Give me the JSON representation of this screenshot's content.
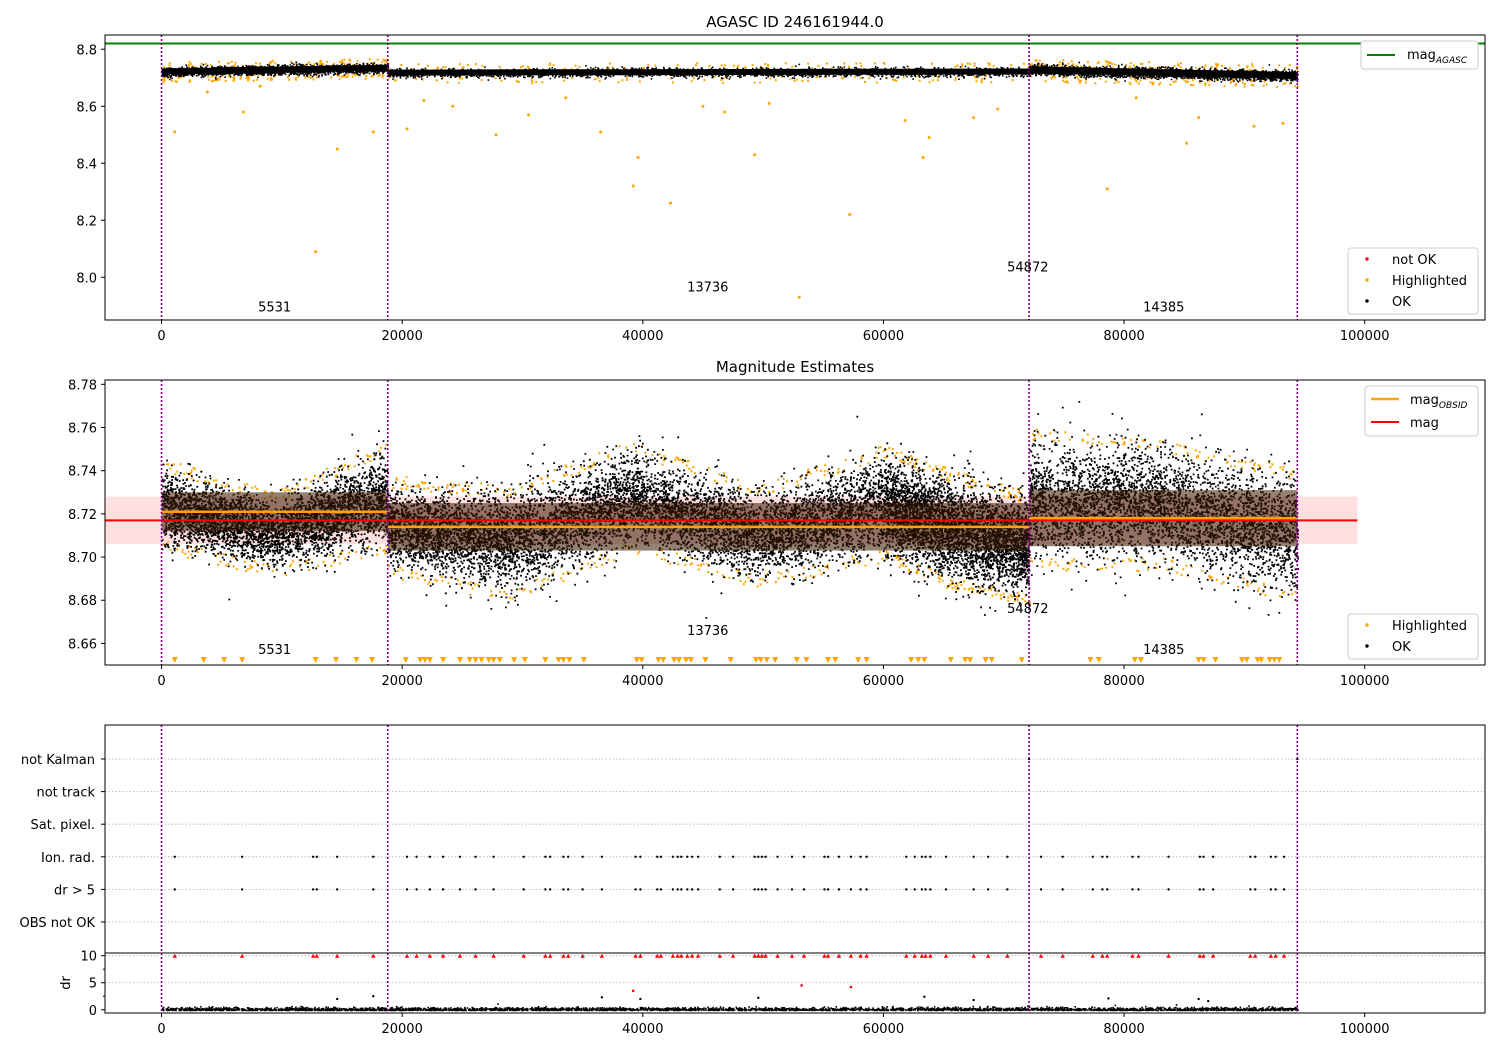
{
  "colors": {
    "agasc_line": "#008000",
    "obsid_line": "#ffa500",
    "mean_line": "#ff0000",
    "highlighted": "#ffa500",
    "ok": "#000000",
    "not_ok": "#ff0000",
    "band": "#ffcccc",
    "obs_boundary": "#800080",
    "grid": "#b0b0b0"
  },
  "chart_data": [
    {
      "type": "scatter",
      "title": "AGASC ID 246161944.0",
      "xlim": [
        -4700,
        110000
      ],
      "ylim": [
        7.85,
        8.85
      ],
      "xticks": [
        0,
        20000,
        40000,
        60000,
        80000,
        100000
      ],
      "xtick_labels": [
        "0",
        "20000",
        "40000",
        "60000",
        "80000",
        "100000"
      ],
      "yticks": [
        8.0,
        8.2,
        8.4,
        8.6,
        8.8
      ],
      "ytick_labels": [
        "8.0",
        "8.2",
        "8.4",
        "8.6",
        "8.8"
      ],
      "reference_line": {
        "name": "mag_AGASC",
        "value": 8.82
      },
      "observation_boundaries": [
        0,
        18800,
        72100,
        94400
      ],
      "segment_labels": [
        {
          "text": "5531",
          "x": 9400,
          "y": 7.88
        },
        {
          "text": "13736",
          "x": 45400,
          "y": 7.95
        },
        {
          "text": "54872",
          "x": 72000,
          "y": 8.02
        },
        {
          "text": "14385",
          "x": 83300,
          "y": 7.88
        }
      ],
      "legend_top": {
        "placement": "upper right",
        "entries": [
          "mag_AGASC"
        ]
      },
      "legend_bottom": {
        "placement": "lower right",
        "entries": [
          "not OK",
          "Highlighted",
          "OK"
        ]
      },
      "ok_band": [
        {
          "x": [
            0,
            18800
          ],
          "center_start": 8.722,
          "center_end": 8.735,
          "half_width": 0.014
        },
        {
          "x": [
            18800,
            72100
          ],
          "center_start": 8.718,
          "center_end": 8.722,
          "half_width": 0.014
        },
        {
          "x": [
            72100,
            94400
          ],
          "center_start": 8.728,
          "center_end": 8.708,
          "half_width": 0.016
        }
      ],
      "highlighted_outliers": [
        [
          1100,
          8.51
        ],
        [
          3800,
          8.65
        ],
        [
          6800,
          8.58
        ],
        [
          8200,
          8.67
        ],
        [
          12800,
          8.09
        ],
        [
          14600,
          8.45
        ],
        [
          17600,
          8.51
        ],
        [
          20400,
          8.52
        ],
        [
          21800,
          8.62
        ],
        [
          24200,
          8.6
        ],
        [
          27800,
          8.5
        ],
        [
          30500,
          8.57
        ],
        [
          33600,
          8.63
        ],
        [
          36500,
          8.51
        ],
        [
          39200,
          8.32
        ],
        [
          39600,
          8.42
        ],
        [
          42300,
          8.26
        ],
        [
          45000,
          8.6
        ],
        [
          46800,
          8.58
        ],
        [
          49300,
          8.43
        ],
        [
          50500,
          8.61
        ],
        [
          53000,
          7.93
        ],
        [
          57200,
          8.22
        ],
        [
          61800,
          8.55
        ],
        [
          63300,
          8.42
        ],
        [
          63800,
          8.49
        ],
        [
          67500,
          8.56
        ],
        [
          69500,
          8.59
        ],
        [
          78600,
          8.31
        ],
        [
          81000,
          8.63
        ],
        [
          85200,
          8.47
        ],
        [
          86200,
          8.56
        ],
        [
          90800,
          8.53
        ],
        [
          93200,
          8.54
        ]
      ]
    },
    {
      "type": "scatter",
      "title": "Magnitude Estimates",
      "xlim": [
        -4700,
        110000
      ],
      "ylim": [
        8.65,
        8.782
      ],
      "xticks": [
        0,
        20000,
        40000,
        60000,
        80000,
        100000
      ],
      "xtick_labels": [
        "0",
        "20000",
        "40000",
        "60000",
        "80000",
        "100000"
      ],
      "yticks": [
        8.66,
        8.68,
        8.7,
        8.72,
        8.74,
        8.76,
        8.78
      ],
      "ytick_labels": [
        "8.66",
        "8.68",
        "8.70",
        "8.72",
        "8.74",
        "8.76",
        "8.78"
      ],
      "mag_line": {
        "name": "mag",
        "value": 8.717,
        "band": [
          8.706,
          8.728
        ],
        "x": [
          -4700,
          99400
        ]
      },
      "obsid_segments": [
        {
          "x": [
            0,
            18800
          ],
          "mag": 8.721,
          "band": [
            8.712,
            8.73
          ]
        },
        {
          "x": [
            18800,
            72100
          ],
          "mag": 8.714,
          "band": [
            8.703,
            8.725
          ]
        },
        {
          "x": [
            72100,
            94400
          ],
          "mag": 8.718,
          "band": [
            8.705,
            8.731
          ]
        }
      ],
      "observation_boundaries": [
        0,
        18800,
        72100,
        94400
      ],
      "segment_labels": [
        {
          "text": "5531",
          "x": 9400,
          "y": 8.655
        },
        {
          "text": "13736",
          "x": 45400,
          "y": 8.664
        },
        {
          "text": "54872",
          "x": 72000,
          "y": 8.674
        },
        {
          "text": "14385",
          "x": 83300,
          "y": 8.655
        }
      ],
      "legend_top": {
        "placement": "upper right",
        "entries": [
          "mag_OBSID",
          "mag"
        ]
      },
      "legend_bottom": {
        "placement": "lower right",
        "entries": [
          "Highlighted",
          "OK"
        ]
      },
      "scatter_envelope": [
        {
          "x": [
            0,
            18800
          ],
          "low_start": 8.708,
          "low_mid": 8.697,
          "low_end": 8.708,
          "high_start": 8.74,
          "high_mid": 8.725,
          "high_end": 8.748
        },
        {
          "x": [
            18800,
            39000
          ],
          "low_start": 8.697,
          "low_mid": 8.685,
          "low_end": 8.708,
          "high_start": 8.732,
          "high_mid": 8.728,
          "high_end": 8.748
        },
        {
          "x": [
            39000,
            60000
          ],
          "low_start": 8.708,
          "low_mid": 8.692,
          "low_end": 8.704,
          "high_start": 8.748,
          "high_mid": 8.728,
          "high_end": 8.746
        },
        {
          "x": [
            60000,
            72100
          ],
          "low_start": 8.704,
          "low_mid": 8.69,
          "low_end": 8.684,
          "high_start": 8.746,
          "high_mid": 8.734,
          "high_end": 8.725
        },
        {
          "x": [
            72100,
            94400
          ],
          "low_start": 8.7,
          "low_mid": 8.7,
          "low_end": 8.684,
          "high_start": 8.754,
          "high_mid": 8.748,
          "high_end": 8.736
        }
      ],
      "highlighted_low_markers": [
        1100,
        3500,
        5200,
        6700,
        12800,
        14500,
        16200,
        17500,
        20300,
        21500,
        21900,
        22300,
        23400,
        24800,
        25600,
        26100,
        26600,
        27200,
        27600,
        28100,
        29300,
        30200,
        31900,
        33000,
        33400,
        33900,
        35100,
        39500,
        39900,
        41300,
        41700,
        42600,
        43000,
        43600,
        44000,
        45200,
        47300,
        49400,
        49800,
        50300,
        51000,
        52800,
        53600,
        55400,
        56000,
        57900,
        58600,
        62300,
        62900,
        63400,
        65600,
        66800,
        67200,
        68500,
        69000,
        71500,
        77200,
        77900,
        80900,
        81400,
        86200,
        86600,
        87600,
        89800,
        90200,
        91100,
        91400,
        92100,
        92500,
        92900
      ]
    },
    {
      "type": "scatter",
      "title": "",
      "xlim": [
        -4700,
        110000
      ],
      "xticks": [
        0,
        20000,
        40000,
        60000,
        80000,
        100000
      ],
      "xtick_labels": [
        "0",
        "20000",
        "40000",
        "60000",
        "80000",
        "100000"
      ],
      "flag_rows": [
        "not Kalman",
        "not track",
        "Sat. pixel.",
        "Ion. rad.",
        "dr > 5",
        "OBS not OK"
      ],
      "flag_points": {
        "Ion. rad.": [
          1100,
          6700,
          12600,
          12900,
          14600,
          17600,
          20400,
          21200,
          22300,
          23400,
          24800,
          26100,
          27600,
          30100,
          31900,
          32300,
          33400,
          33800,
          35000,
          36600,
          39400,
          39800,
          41200,
          41500,
          42500,
          42900,
          43200,
          43700,
          44100,
          44600,
          46400,
          47500,
          49300,
          49600,
          49900,
          50200,
          51200,
          52400,
          53400,
          55100,
          55400,
          56300,
          57300,
          58100,
          58600,
          61900,
          62600,
          63200,
          63500,
          63900,
          65200,
          67500,
          68700,
          70300,
          73100,
          74900,
          77400,
          78200,
          78600,
          80700,
          81200,
          83700,
          86300,
          86600,
          87400,
          90500,
          90900,
          92200,
          92600,
          93300
        ],
        "dr > 5": [
          1100,
          6700,
          12600,
          12900,
          14600,
          17600,
          20400,
          21200,
          22300,
          23400,
          24800,
          26100,
          27600,
          30100,
          31900,
          32300,
          33400,
          33800,
          35000,
          36600,
          39400,
          39800,
          41200,
          41500,
          42500,
          42900,
          43200,
          43700,
          44100,
          44600,
          46400,
          47500,
          49300,
          49600,
          49900,
          50200,
          51200,
          52400,
          53400,
          55100,
          55400,
          56300,
          57300,
          58100,
          58600,
          61900,
          62600,
          63200,
          63500,
          63900,
          65200,
          67500,
          68700,
          70300,
          73100,
          74900,
          77400,
          78200,
          78600,
          80700,
          81200,
          83700,
          86300,
          86600,
          87400,
          90500,
          90900,
          92200,
          92600,
          93300
        ],
        "not Kalman": [
          72100,
          94400
        ]
      },
      "observation_boundaries": [
        0,
        18800,
        72100,
        94400
      ]
    },
    {
      "type": "scatter",
      "title": "",
      "xlim": [
        -4700,
        110000
      ],
      "ylim": [
        -0.6,
        10.5
      ],
      "ylabel": "dr",
      "yticks": [
        0,
        5,
        10
      ],
      "ytick_labels": [
        "0",
        "5",
        "10"
      ],
      "xticks": [
        0,
        20000,
        40000,
        60000,
        80000,
        100000
      ],
      "xtick_labels": [
        "0",
        "20000",
        "40000",
        "60000",
        "80000",
        "100000"
      ],
      "clipped_high_markers": [
        1100,
        6700,
        12600,
        12900,
        14600,
        17600,
        20400,
        21200,
        22300,
        23400,
        24800,
        26100,
        27600,
        30100,
        31900,
        32300,
        33400,
        33800,
        35000,
        36600,
        39400,
        39800,
        41200,
        41500,
        42500,
        42900,
        43200,
        43700,
        44100,
        44600,
        46400,
        47500,
        49300,
        49600,
        49900,
        50200,
        51200,
        52400,
        53400,
        55100,
        55400,
        56300,
        57300,
        58100,
        58600,
        61900,
        62600,
        63200,
        63500,
        63900,
        65200,
        67500,
        68700,
        70300,
        73100,
        74900,
        77400,
        78200,
        78600,
        80700,
        81200,
        83700,
        86300,
        86600,
        87400,
        90500,
        90900,
        92200,
        92600,
        93300
      ],
      "not_ok_points": [
        [
          39200,
          3.5
        ],
        [
          53200,
          4.5
        ],
        [
          57300,
          4.2
        ]
      ],
      "ok_outliers": [
        [
          14600,
          2.0
        ],
        [
          17600,
          2.5
        ],
        [
          36600,
          2.3
        ],
        [
          39800,
          2.0
        ],
        [
          49600,
          2.2
        ],
        [
          63400,
          2.4
        ],
        [
          67500,
          1.8
        ],
        [
          78700,
          2.1
        ],
        [
          86200,
          2.0
        ],
        [
          87000,
          1.6
        ]
      ],
      "observation_boundaries": [
        0,
        18800,
        72100,
        94400
      ]
    }
  ]
}
